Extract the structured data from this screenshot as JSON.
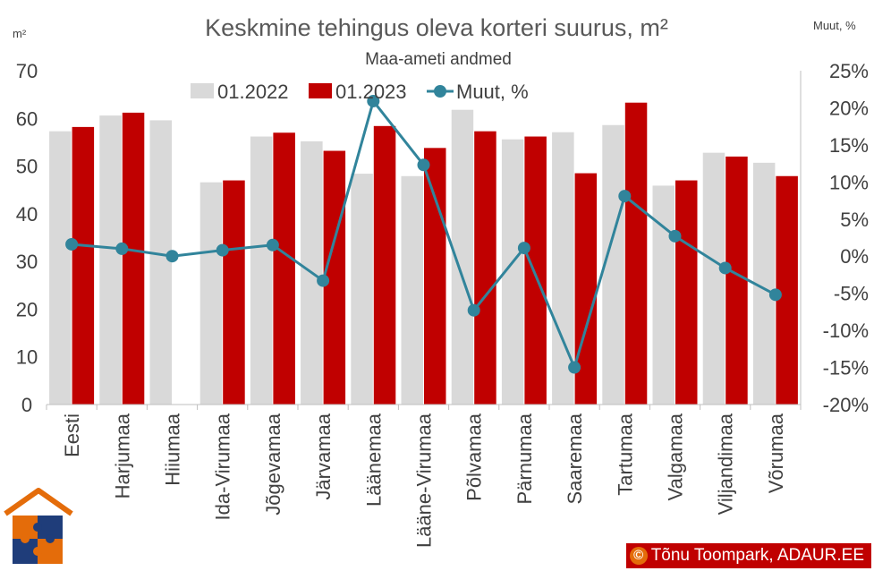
{
  "chart_data": {
    "type": "bar",
    "title": "Keskmine tehingus oleva korteri suurus, m²",
    "subtitle": "Maa-ameti andmed",
    "ylabel": "m²",
    "y2label": "Muut, %",
    "ylim": [
      0,
      70
    ],
    "y2lim": [
      -20,
      25
    ],
    "y_ticks": [
      "0",
      "10",
      "20",
      "30",
      "40",
      "50",
      "60",
      "70"
    ],
    "y2_ticks": [
      "-20%",
      "-15%",
      "-10%",
      "-5%",
      "0%",
      "5%",
      "10%",
      "15%",
      "20%",
      "25%"
    ],
    "grid": false,
    "legend_position": "top",
    "categories": [
      "Eesti",
      "Harjumaa",
      "Hiiumaa",
      "Ida-Virumaa",
      "Jõgevamaa",
      "Järvamaa",
      "Läänemaa",
      "Lääne-Virumaa",
      "Põlvamaa",
      "Pärnumaa",
      "Saaremaa",
      "Tartumaa",
      "Valgamaa",
      "Viljandimaa",
      "Võrumaa"
    ],
    "series": [
      {
        "name": "01.2022",
        "kind": "bar",
        "axis": "left",
        "color": "#d9d9d9",
        "values": [
          57.3,
          60.6,
          59.6,
          46.6,
          56.2,
          55.2,
          48.4,
          47.9,
          61.8,
          55.6,
          57.1,
          58.6,
          45.9,
          52.8,
          50.7
        ]
      },
      {
        "name": "01.2023",
        "kind": "bar",
        "axis": "left",
        "color": "#c00000",
        "values": [
          58.2,
          61.2,
          null,
          47.0,
          57.0,
          53.2,
          58.4,
          53.8,
          57.3,
          56.2,
          48.5,
          63.3,
          47.0,
          52.0,
          47.9
        ]
      },
      {
        "name": "Muut, %",
        "kind": "line",
        "axis": "right",
        "color": "#31849b",
        "values": [
          1.6,
          1.0,
          0.0,
          0.8,
          1.5,
          -3.3,
          20.9,
          12.3,
          -7.3,
          1.1,
          -15.0,
          8.1,
          2.7,
          -1.6,
          -5.2
        ]
      }
    ]
  },
  "footer": {
    "credit": "Tõnu Toompark, ADAUR.EE",
    "copyright_symbol": "©"
  }
}
